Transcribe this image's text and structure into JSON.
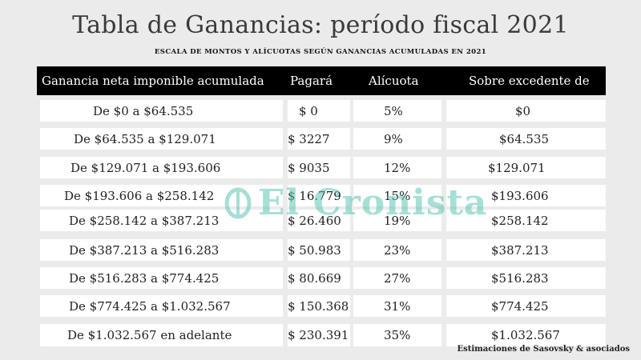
{
  "title": "Tabla de Ganancias: período fiscal 2021",
  "subtitle": "ESCALA DE MONTOS Y ALÍCUOTAS SEGÚN GANANCIAS ACUMULADAS EN 2021",
  "headers": [
    "Ganancia neta imponible acumulada",
    "Pagará",
    "Alícuota",
    "Sobre excedente de"
  ],
  "rows": [
    [
      "De $0 a $64.535",
      "$ 0",
      "5%",
      "$0"
    ],
    [
      "De $64.535 a $129.071",
      "$ 3227",
      "9%",
      "$64.535"
    ],
    [
      "De $129.071 a $193.606",
      "$ 9035",
      "12%",
      "$129.071"
    ],
    [
      "De $193.606 a $258.142",
      "$ 16.779",
      "15%",
      "$193.606"
    ],
    [
      "De $258.142 a $387.213",
      "$ 26.460",
      "19%",
      "$258.142"
    ],
    [
      "De $387.213 a $516.283",
      "$ 50.983",
      "23%",
      "$387.213"
    ],
    [
      "De $516.283 a $774.425",
      "$ 80.669",
      "27%",
      "$516.283"
    ],
    [
      "De $774.425 a $1.032.567",
      "$ 150.368",
      "31%",
      "$774.425"
    ],
    [
      "De $1.032.567 en adelante",
      "$ 230.391",
      "35%",
      "$1.032.567"
    ]
  ],
  "watermark": "El Cronista",
  "footer": "Estimaciones de Sasovsky & asociados",
  "colors": {
    "background": "#ebebeb",
    "header": "#000000",
    "cell": "#ffffff",
    "watermark": "#5fc5b6"
  }
}
